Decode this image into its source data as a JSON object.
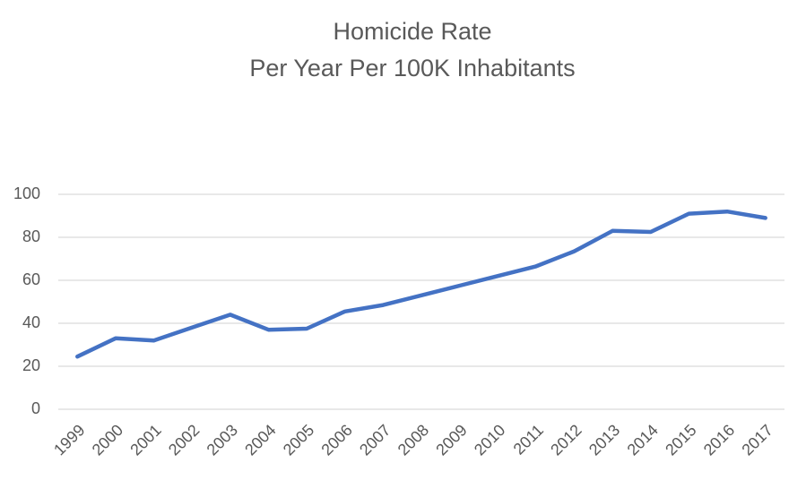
{
  "chart_data": {
    "type": "line",
    "title": "Homicide Rate",
    "subtitle": "Per Year Per 100K Inhabitants",
    "categories": [
      "1999",
      "2000",
      "2001",
      "2002",
      "2003",
      "2004",
      "2005",
      "2006",
      "2007",
      "2008",
      "2009",
      "2010",
      "2011",
      "2012",
      "2013",
      "2014",
      "2015",
      "2016",
      "2017"
    ],
    "values": [
      24.5,
      33,
      32,
      38,
      44,
      37,
      37.5,
      45.5,
      48.5,
      53,
      57.5,
      62,
      66.5,
      73.5,
      83,
      82.5,
      91,
      92,
      89
    ],
    "color": "#4472c4",
    "ylim": [
      0,
      100
    ],
    "yticks": [
      0,
      20,
      40,
      60,
      80,
      100
    ],
    "grid": true
  }
}
